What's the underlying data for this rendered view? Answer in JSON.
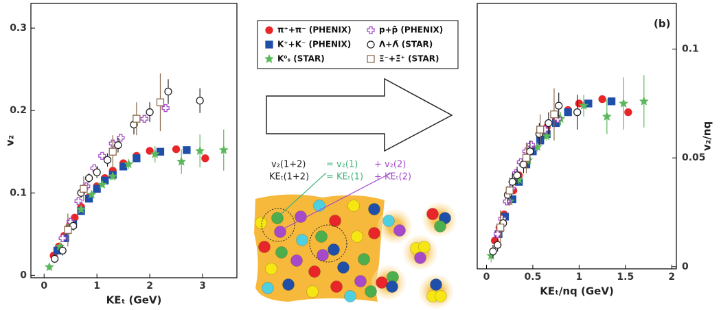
{
  "chart_data": [
    {
      "type": "scatter",
      "xlabel": "KEₜ (GeV)",
      "ylabel": "v₂",
      "xlim": [
        -0.25,
        3.65
      ],
      "ylim": [
        -0.003,
        0.33
      ],
      "xticks": [
        0,
        1,
        2,
        3
      ],
      "yticks": [
        0,
        0.1,
        0.2,
        0.3
      ],
      "yaxis_position": "left",
      "series": [
        {
          "name": "π⁺+π⁻ (PHENIX)",
          "color": "#e8262a",
          "marker": "circle",
          "filled": true,
          "x": [
            0.18,
            0.28,
            0.38,
            0.48,
            0.58,
            0.7,
            0.85,
            1.0,
            1.15,
            1.3,
            1.5,
            1.75,
            2.0,
            2.5,
            3.05
          ],
          "values": [
            0.024,
            0.035,
            0.048,
            0.06,
            0.07,
            0.083,
            0.095,
            0.108,
            0.118,
            0.127,
            0.136,
            0.145,
            0.151,
            0.153,
            0.142
          ]
        },
        {
          "name": "K⁺+K⁻ (PHENIX)",
          "color": "#1f4fa8",
          "marker": "square",
          "filled": true,
          "x": [
            0.25,
            0.4,
            0.55,
            0.7,
            0.85,
            1.0,
            1.15,
            1.3,
            1.5,
            1.75,
            2.2,
            2.7
          ],
          "values": [
            0.03,
            0.045,
            0.062,
            0.078,
            0.093,
            0.105,
            0.115,
            0.122,
            0.132,
            0.142,
            0.15,
            0.152
          ]
        },
        {
          "name": "K⁰ₛ (STAR)",
          "color": "#5cb85c",
          "marker": "star",
          "filled": true,
          "x": [
            0.1,
            0.3,
            0.5,
            0.7,
            0.9,
            1.1,
            1.3,
            1.6,
            2.1,
            2.6,
            2.95,
            3.4
          ],
          "values": [
            0.01,
            0.035,
            0.06,
            0.08,
            0.098,
            0.11,
            0.12,
            0.135,
            0.147,
            0.138,
            0.151,
            0.152
          ],
          "errors": [
            0.004,
            0.003,
            0.003,
            0.003,
            0.003,
            0.003,
            0.004,
            0.006,
            0.01,
            0.015,
            0.02,
            0.025
          ]
        },
        {
          "name": "p+p̄ (PHENIX)",
          "color": "#a64ac9",
          "marker": "cross",
          "filled": false,
          "x": [
            0.35,
            0.5,
            0.65,
            0.8,
            0.95,
            1.1,
            1.3,
            1.45,
            1.9,
            2.3
          ],
          "values": [
            0.045,
            0.065,
            0.09,
            0.108,
            0.13,
            0.145,
            0.16,
            0.167,
            0.19,
            0.203
          ]
        },
        {
          "name": "Λ+Λ̄ (STAR)",
          "color": "#222222",
          "marker": "circle",
          "filled": false,
          "x": [
            0.2,
            0.35,
            0.55,
            0.7,
            0.85,
            1.0,
            1.2,
            1.4,
            1.7,
            2.0,
            2.35,
            2.95
          ],
          "values": [
            0.02,
            0.03,
            0.06,
            0.1,
            0.118,
            0.125,
            0.14,
            0.158,
            0.183,
            0.198,
            0.223,
            0.212
          ],
          "errors": [
            0.005,
            0.006,
            0.006,
            0.006,
            0.006,
            0.007,
            0.008,
            0.009,
            0.012,
            0.012,
            0.015,
            0.015
          ]
        },
        {
          "name": "Ξ⁻+Ξ̄⁺ (STAR)",
          "color": "#8b6a4e",
          "marker": "square",
          "filled": false,
          "x": [
            0.45,
            0.75,
            1.3,
            1.75,
            2.2
          ],
          "values": [
            0.055,
            0.105,
            0.15,
            0.19,
            0.21
          ],
          "errors": [
            0.02,
            0.015,
            0.02,
            0.02,
            0.035
          ]
        }
      ]
    },
    {
      "type": "scatter",
      "label": "(b)",
      "xlabel": "KEₜ/nq (GeV)",
      "ylabel": "v₂/nq",
      "xlim": [
        -0.1,
        2.05
      ],
      "ylim": [
        -0.001,
        0.121
      ],
      "xticks": [
        0,
        0.5,
        1,
        1.5,
        2
      ],
      "yticks": [
        0,
        0.05,
        0.1
      ],
      "yaxis_position": "right",
      "series": [
        {
          "color": "#e8262a",
          "marker": "circle",
          "filled": true,
          "x": [
            0.09,
            0.14,
            0.19,
            0.24,
            0.29,
            0.35,
            0.43,
            0.5,
            0.58,
            0.65,
            0.75,
            0.88,
            1.0,
            1.25,
            1.53
          ],
          "values": [
            0.012,
            0.018,
            0.024,
            0.03,
            0.035,
            0.042,
            0.048,
            0.054,
            0.059,
            0.064,
            0.068,
            0.072,
            0.075,
            0.077,
            0.071
          ]
        },
        {
          "color": "#1f4fa8",
          "marker": "square",
          "filled": true,
          "x": [
            0.13,
            0.2,
            0.28,
            0.35,
            0.43,
            0.5,
            0.58,
            0.65,
            0.75,
            0.88,
            1.1,
            1.35
          ],
          "values": [
            0.015,
            0.023,
            0.031,
            0.039,
            0.047,
            0.053,
            0.058,
            0.061,
            0.066,
            0.071,
            0.075,
            0.076
          ]
        },
        {
          "color": "#5cb85c",
          "marker": "star",
          "filled": true,
          "x": [
            0.05,
            0.15,
            0.25,
            0.35,
            0.45,
            0.55,
            0.65,
            0.8,
            1.05,
            1.3,
            1.48,
            1.7
          ],
          "values": [
            0.005,
            0.018,
            0.03,
            0.04,
            0.049,
            0.055,
            0.06,
            0.068,
            0.074,
            0.069,
            0.075,
            0.076
          ],
          "errors": [
            0.003,
            0.002,
            0.002,
            0.002,
            0.002,
            0.002,
            0.002,
            0.003,
            0.005,
            0.008,
            0.012,
            0.012
          ]
        },
        {
          "color": "#a64ac9",
          "marker": "cross",
          "filled": false,
          "x": [
            0.12,
            0.17,
            0.22,
            0.27,
            0.32,
            0.37,
            0.43,
            0.48,
            0.63,
            0.77
          ],
          "values": [
            0.015,
            0.022,
            0.03,
            0.036,
            0.043,
            0.048,
            0.053,
            0.056,
            0.063,
            0.068
          ]
        },
        {
          "color": "#222222",
          "marker": "circle",
          "filled": false,
          "x": [
            0.07,
            0.12,
            0.18,
            0.23,
            0.28,
            0.33,
            0.4,
            0.47,
            0.57,
            0.67,
            0.78,
            0.98
          ],
          "values": [
            0.007,
            0.01,
            0.02,
            0.033,
            0.039,
            0.042,
            0.047,
            0.053,
            0.061,
            0.066,
            0.074,
            0.071
          ],
          "errors": [
            0.003,
            0.003,
            0.004,
            0.004,
            0.004,
            0.004,
            0.004,
            0.005,
            0.005,
            0.005,
            0.006,
            0.008
          ]
        },
        {
          "color": "#8b6a4e",
          "marker": "square",
          "filled": false,
          "x": [
            0.15,
            0.25,
            0.43,
            0.58,
            0.73
          ],
          "values": [
            0.018,
            0.035,
            0.05,
            0.063,
            0.07
          ],
          "errors": [
            0.008,
            0.006,
            0.007,
            0.007,
            0.012
          ]
        }
      ]
    }
  ],
  "diagram": {
    "formula": [
      [
        "v₂(1+2)",
        "= v₂(1)",
        "+ v₂(2)"
      ],
      [
        "KEₜ(1+2)",
        "= KEₜ(1)",
        "+ KEₜ(2)"
      ]
    ]
  }
}
